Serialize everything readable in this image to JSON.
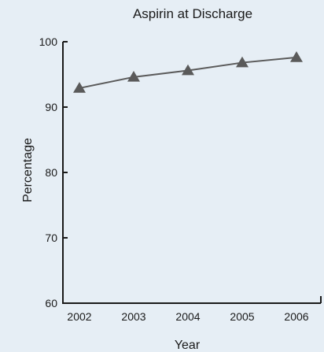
{
  "chart_data": {
    "type": "line",
    "title": "Aspirin at Discharge",
    "xlabel": "Year",
    "ylabel": "Percentage",
    "categories": [
      "2002",
      "2003",
      "2004",
      "2005",
      "2006"
    ],
    "series": [
      {
        "values": [
          92.9,
          94.6,
          95.6,
          96.8,
          97.6
        ]
      }
    ],
    "ylim": [
      60,
      100
    ],
    "yticks": [
      60,
      70,
      80,
      90,
      100
    ],
    "marker": "triangle",
    "grid": false,
    "colors": {
      "background": "#e6eef5",
      "line": "#5a5a5a",
      "marker": "#5a5a5a",
      "axis": "#1a1a1a"
    }
  }
}
